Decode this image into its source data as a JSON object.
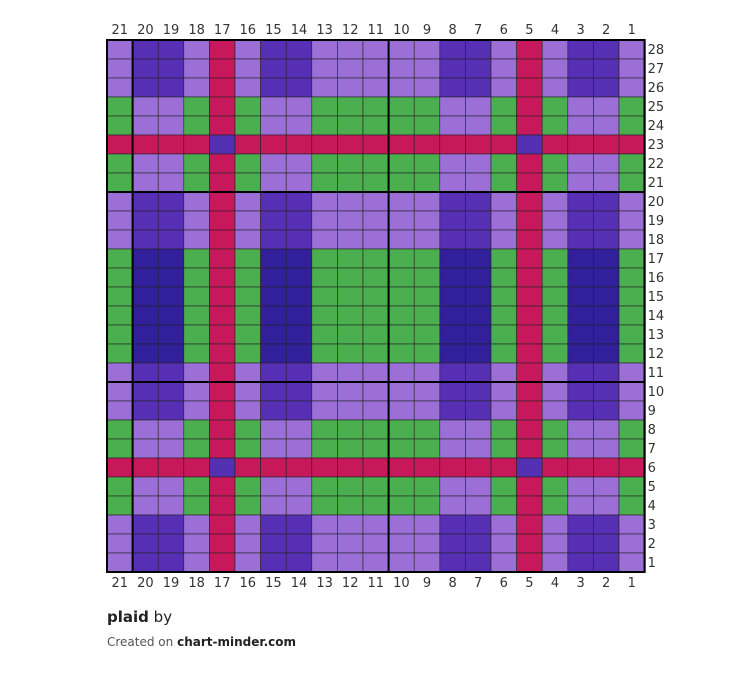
{
  "chart": {
    "title": "plaid",
    "by_label": "by",
    "credit_prefix": "Created on",
    "credit_site": "chart-minder.com"
  },
  "colors": {
    "L": "#9b6fd6",
    "D": "#572fb4",
    "V": "#31209a",
    "G": "#4bae4f",
    "R": "#c7185b",
    "P": "#5330b2"
  },
  "chart_data": {
    "type": "grid-pattern",
    "columns": 21,
    "rows": 28,
    "column_labels": [
      "21",
      "20",
      "19",
      "18",
      "17",
      "16",
      "15",
      "14",
      "13",
      "12",
      "11",
      "10",
      "9",
      "8",
      "7",
      "6",
      "5",
      "4",
      "3",
      "2",
      "1"
    ],
    "row_labels": [
      "28",
      "27",
      "26",
      "25",
      "24",
      "23",
      "22",
      "21",
      "20",
      "19",
      "18",
      "17",
      "16",
      "15",
      "14",
      "13",
      "12",
      "11",
      "10",
      "9",
      "8",
      "7",
      "6",
      "5",
      "4",
      "3",
      "2",
      "1"
    ],
    "cells": [
      "LDDLRLDDLLLLLDDLRLDDL",
      "LDDLRLDDLLLLLDDLRLDDL",
      "LDDLRLDDLLLLLDDLRLDDL",
      "GLLGRGLLGGGGGLLGRGLLG",
      "GLLGRGLLGGGGGLLGRGLLG",
      "RRRRPRRRRRRRRRRRPRRRR",
      "GLLGRGLLGGGGGLLGRGLLG",
      "GLLGRGLLGGGGGLLGRGLLG",
      "LDDLRLDDLLLLLDDLRLDDL",
      "LDDLRLDDLLLLLDDLRLDDL",
      "LDDLRLDDLLLLLDDLRLDDL",
      "GVVGRGVVGGGGGVVGRGVVG",
      "GVVGRGVVGGGGGVVGRGVVG",
      "GVVGRGVVGGGGGVVGRGVVG",
      "GVVGRGVVGGGGGVVGRGVVG",
      "GVVGRGVVGGGGGVVGRGVVG",
      "GVVGRGVVGGGGGVVGRGVVG",
      "LDDLRLDDLLLLLDDLRLDDL",
      "LDDLRLDDLLLLLDDLRLDDL",
      "LDDLRLDDLLLLLDDLRLDDL",
      "GLLGRGLLGGGGGLLGRGLLG",
      "GLLGRGLLGGGGGLLGRGLLG",
      "RRRRPRRRRRRRRRRRPRRRR",
      "GLLGRGLLGGGGGLLGRGLLG",
      "GLLGRGLLGGGGGLLGRGLLG",
      "LDDLRLDDLLLLLDDLRLDDL",
      "LDDLRLDDLLLLLDDLRLDDL",
      "LDDLRLDDLLLLLDDLRLDDL"
    ]
  }
}
